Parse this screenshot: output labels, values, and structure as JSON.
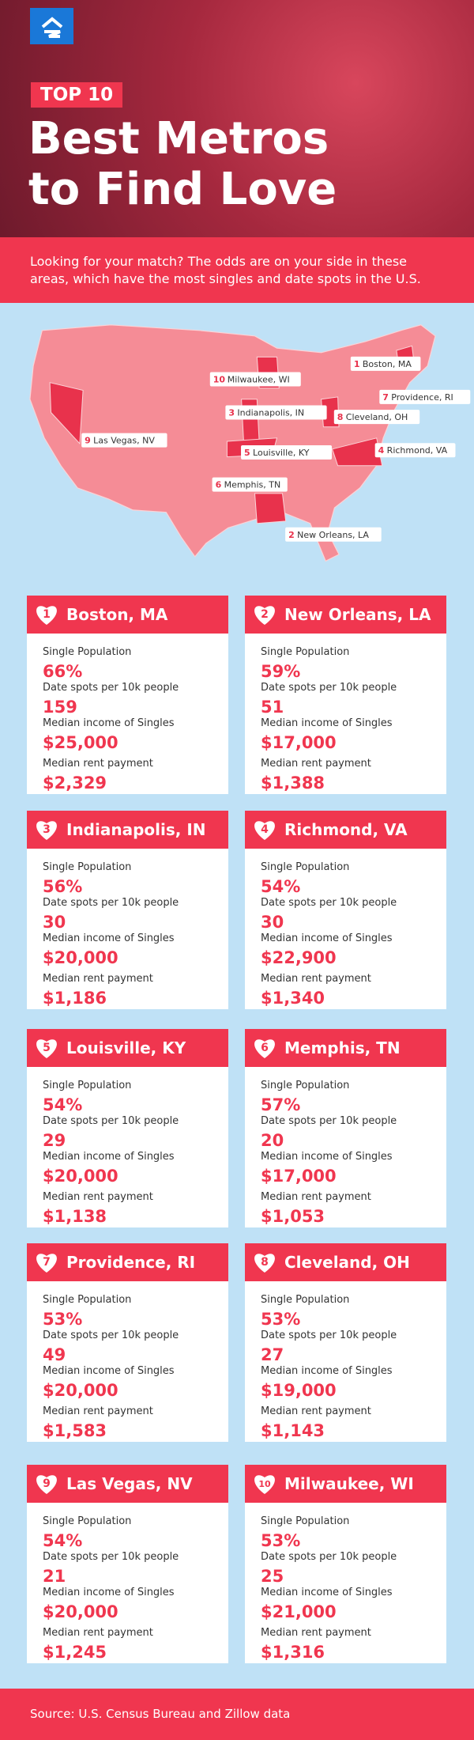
{
  "header": {
    "badge": "TOP 10",
    "title_lines": [
      "Best Metros",
      "to Find Love"
    ],
    "intro": "Looking for your match? The odds are on your side in these areas, which have the most singles and date spots in the U.S."
  },
  "map": {
    "labels": [
      {
        "rank": "1",
        "name": "Boston, MA"
      },
      {
        "rank": "2",
        "name": "New Orleans, LA"
      },
      {
        "rank": "3",
        "name": "Indianapolis, IN"
      },
      {
        "rank": "4",
        "name": "Richmond, VA"
      },
      {
        "rank": "5",
        "name": "Louisville, KY"
      },
      {
        "rank": "6",
        "name": "Memphis, TN"
      },
      {
        "rank": "7",
        "name": "Providence, RI"
      },
      {
        "rank": "8",
        "name": "Cleveland, OH"
      },
      {
        "rank": "9",
        "name": "Las Vegas, NV"
      },
      {
        "rank": "10",
        "name": "Milwaukee, WI"
      }
    ]
  },
  "field_labels": [
    "Single Population",
    "Date spots per 10k people",
    "Median income of Singles",
    "Median rent payment"
  ],
  "cards": [
    {
      "rank": "1",
      "name": "Boston, MA",
      "values": [
        "66%",
        "159",
        "$25,000",
        "$2,329"
      ]
    },
    {
      "rank": "2",
      "name": "New Orleans, LA",
      "values": [
        "59%",
        "51",
        "$17,000",
        "$1,388"
      ]
    },
    {
      "rank": "3",
      "name": "Indianapolis, IN",
      "values": [
        "56%",
        "30",
        "$20,000",
        "$1,186"
      ]
    },
    {
      "rank": "4",
      "name": "Richmond, VA",
      "values": [
        "54%",
        "30",
        "$22,900",
        "$1,340"
      ]
    },
    {
      "rank": "5",
      "name": "Louisville, KY",
      "values": [
        "54%",
        "29",
        "$20,000",
        "$1,138"
      ]
    },
    {
      "rank": "6",
      "name": "Memphis, TN",
      "values": [
        "57%",
        "20",
        "$17,000",
        "$1,053"
      ]
    },
    {
      "rank": "7",
      "name": "Providence, RI",
      "values": [
        "53%",
        "49",
        "$20,000",
        "$1,583"
      ]
    },
    {
      "rank": "8",
      "name": "Cleveland, OH",
      "values": [
        "53%",
        "27",
        "$19,000",
        "$1,143"
      ]
    },
    {
      "rank": "9",
      "name": "Las Vegas, NV",
      "values": [
        "54%",
        "21",
        "$20,000",
        "$1,245"
      ]
    },
    {
      "rank": "10",
      "name": "Milwaukee, WI",
      "values": [
        "53%",
        "25",
        "$21,000",
        "$1,316"
      ]
    }
  ],
  "footer": {
    "source": "Source: U.S. Census Bureau and Zillow data"
  }
}
